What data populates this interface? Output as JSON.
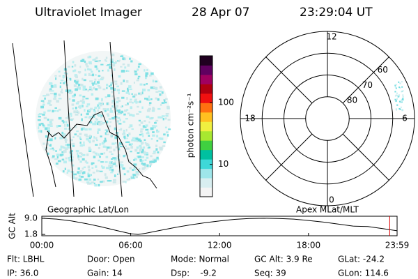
{
  "header": {
    "title": "Ultraviolet Imager",
    "date": "28 Apr 07",
    "time": "23:29:04 UT"
  },
  "images": {
    "left": {
      "label": "Geographic Lat/Lon"
    },
    "right": {
      "label": "Apex MLat/MLT"
    }
  },
  "colorbar": {
    "label": "photon cm⁻²s⁻¹",
    "log": true,
    "lim": [
      3,
      575
    ],
    "ticks": [
      10,
      100
    ],
    "colors": [
      "#f4f4f4",
      "#d8eef0",
      "#9ee6ea",
      "#3ed8d8",
      "#00c0a0",
      "#40d040",
      "#a8e830",
      "#f0f040",
      "#ffc020",
      "#ff7010",
      "#f01010",
      "#b00010",
      "#a00060",
      "#600060",
      "#200020"
    ]
  },
  "polar": {
    "rlim": [
      90,
      50
    ],
    "lat_rings": [
      80,
      70,
      60
    ],
    "mlt_labels": [
      {
        "value": 12,
        "label": "12"
      },
      {
        "value": 18,
        "label": "18"
      },
      {
        "value": 6,
        "label": "6"
      },
      {
        "value": 0,
        "label": "0"
      }
    ]
  },
  "chart_data": {
    "type": "line",
    "ylabel": "GC Alt",
    "color": "#000000",
    "x": [
      0,
      1,
      2,
      3,
      4,
      5,
      6,
      6.5,
      7,
      8,
      9,
      10,
      11,
      12,
      13,
      14,
      15,
      16,
      17,
      18,
      19,
      20,
      21,
      22,
      23,
      23.98
    ],
    "values": [
      9.0,
      8.6,
      7.8,
      6.6,
      5.2,
      3.6,
      2.1,
      1.8,
      2.3,
      3.6,
      4.9,
      6.0,
      7.0,
      7.8,
      8.5,
      8.9,
      9.0,
      8.9,
      8.6,
      8.0,
      7.3,
      6.4,
      5.5,
      5.3,
      4.4,
      3.4
    ],
    "xlim": [
      0,
      23.98
    ],
    "ylim": [
      1.2,
      9.9
    ],
    "xticks": [
      {
        "value": 0,
        "label": "00:00"
      },
      {
        "value": 6,
        "label": "06:00"
      },
      {
        "value": 12,
        "label": "12:00"
      },
      {
        "value": 18,
        "label": "18:00"
      },
      {
        "value": 23.98,
        "label": "23:59"
      }
    ],
    "yticks": [
      {
        "value": 9.0,
        "label": "9.0"
      },
      {
        "value": 1.8,
        "label": "1.8"
      }
    ],
    "marker": {
      "x": 23.48,
      "color": "#e00000"
    }
  },
  "footer": {
    "rows": [
      [
        "Flt: LBHL",
        "Door: Open",
        "Mode: Normal",
        "GC Alt: 3.9 Re",
        "GLat: -24.2"
      ],
      [
        "IP: 36.0",
        "Gain: 14",
        "Dsp:    -9.2",
        "Seq: 39",
        "GLon: 114.6"
      ]
    ]
  }
}
